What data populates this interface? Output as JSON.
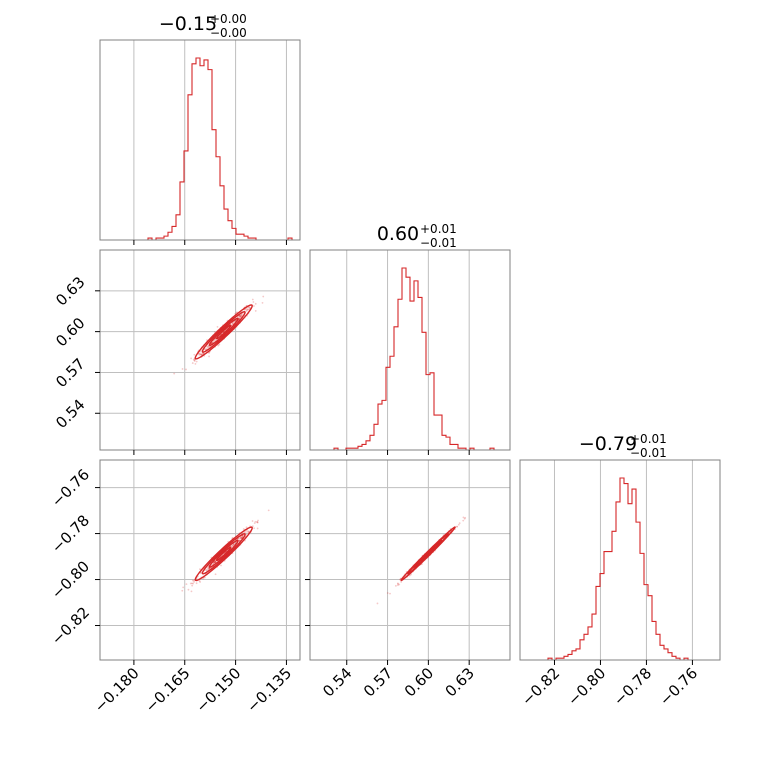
{
  "chart_data": {
    "type": "corner",
    "color": "#d62728",
    "parameters": [
      {
        "lim": [
          -0.19,
          -0.131
        ],
        "ticks": [
          -0.18,
          -0.165,
          -0.15,
          -0.135
        ],
        "tick_labels": [
          "−0.180",
          "−0.165",
          "−0.150",
          "−0.135"
        ]
      },
      {
        "lim": [
          0.513,
          0.66
        ],
        "ticks": [
          0.54,
          0.57,
          0.6,
          0.63
        ],
        "tick_labels": [
          "0.54",
          "0.57",
          "0.60",
          "0.63"
        ]
      },
      {
        "lim": [
          -0.835,
          -0.748
        ],
        "ticks": [
          -0.82,
          -0.8,
          -0.78,
          -0.76
        ],
        "tick_labels": [
          "−0.82",
          "−0.80",
          "−0.78",
          "−0.76"
        ]
      }
    ],
    "titles": [
      {
        "value": "−0.15",
        "upper": "+0.00",
        "lower": "−0.00"
      },
      {
        "value": "0.60",
        "upper": "+0.01",
        "lower": "−0.01"
      },
      {
        "value": "−0.79",
        "upper": "+0.01",
        "lower": "−0.01"
      }
    ],
    "histograms": [
      {
        "counts": [
          0,
          0,
          0,
          0,
          0,
          0,
          0,
          0,
          0,
          0,
          0,
          0,
          1,
          0,
          1,
          1,
          2,
          4,
          7,
          13,
          30,
          46,
          75,
          91,
          94,
          90,
          93,
          88,
          57,
          43,
          28,
          16,
          10,
          6,
          3,
          3,
          2,
          1,
          1,
          0,
          0,
          0,
          0,
          0,
          0,
          0,
          0,
          1,
          0,
          0
        ]
      },
      {
        "counts": [
          0,
          0,
          0,
          0,
          0,
          0,
          1,
          0,
          0,
          1,
          1,
          1,
          2,
          3,
          5,
          8,
          14,
          25,
          27,
          45,
          51,
          67,
          82,
          99,
          94,
          81,
          92,
          83,
          64,
          41,
          42,
          19,
          19,
          8,
          7,
          3,
          3,
          1,
          1,
          0,
          1,
          0,
          0,
          0,
          0,
          1,
          0,
          0,
          0,
          0
        ]
      },
      {
        "counts": [
          0,
          0,
          0,
          0,
          0,
          0,
          0,
          1,
          0,
          1,
          1,
          2,
          3,
          5,
          6,
          11,
          14,
          18,
          25,
          40,
          47,
          59,
          59,
          70,
          86,
          99,
          96,
          85,
          93,
          75,
          58,
          41,
          35,
          21,
          14,
          8,
          6,
          4,
          2,
          1,
          0,
          1,
          0,
          0,
          0,
          0,
          0,
          0,
          0,
          0
        ]
      }
    ],
    "pairs": [
      {
        "x_param": 0,
        "y_param": 1,
        "center": [
          -0.1535,
          0.5998
        ],
        "sd": [
          0.0042,
          0.0099
        ],
        "rho": 0.97
      },
      {
        "x_param": 0,
        "y_param": 2,
        "center": [
          -0.1535,
          -0.7888
        ],
        "sd": [
          0.0042,
          0.0058
        ],
        "rho": 0.97
      },
      {
        "x_param": 1,
        "y_param": 2,
        "center": [
          0.5998,
          -0.7888
        ],
        "sd": [
          0.0099,
          0.0058
        ],
        "rho": 0.995
      }
    ],
    "grid": true
  }
}
